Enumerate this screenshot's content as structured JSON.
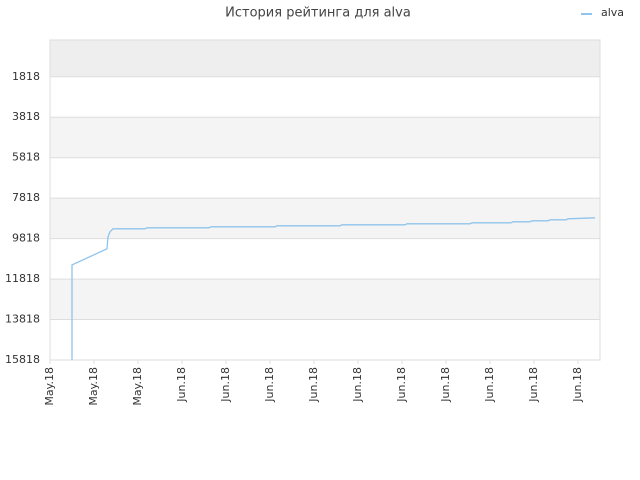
{
  "chart_data": {
    "type": "line",
    "title": "История рейтинга для alva",
    "x": [
      0.5,
      0.5,
      0.5,
      0.5,
      1.295,
      1.318,
      1.364,
      1.432,
      2.159,
      2.205,
      3.614,
      3.659,
      5.114,
      5.159,
      6.591,
      6.636,
      8.068,
      8.114,
      9.545,
      9.591,
      10.477,
      10.523,
      10.909,
      10.955,
      11.318,
      11.364,
      11.727,
      11.773,
      12.386
    ],
    "series": [
      {
        "name": "alva",
        "color": "#90c4ec",
        "values": [
          15818,
          13343,
          13096,
          11115,
          10323,
          9730,
          9482,
          9334,
          9334,
          9284,
          9284,
          9235,
          9235,
          9185,
          9185,
          9136,
          9136,
          9086,
          9086,
          9036,
          9036,
          8987,
          8987,
          8937,
          8937,
          8888,
          8888,
          8838,
          8789
        ]
      }
    ],
    "xlim": [
      0,
      12.5
    ],
    "xticks": [
      {
        "value": 0,
        "label": "May.18"
      },
      {
        "value": 1,
        "label": "May.18"
      },
      {
        "value": 2,
        "label": "May.18"
      },
      {
        "value": 3,
        "label": "Jun.18"
      },
      {
        "value": 4,
        "label": "Jun.18"
      },
      {
        "value": 5,
        "label": "Jun.18"
      },
      {
        "value": 6,
        "label": "Jun.18"
      },
      {
        "value": 7,
        "label": "Jun.18"
      },
      {
        "value": 8,
        "label": "Jun.18"
      },
      {
        "value": 9,
        "label": "Jun.18"
      },
      {
        "value": 10,
        "label": "Jun.18"
      },
      {
        "value": 11,
        "label": "Jun.18"
      },
      {
        "value": 12,
        "label": "Jun.18"
      }
    ],
    "ylim": [
      15818,
      0
    ],
    "yticks": [
      1818,
      3818,
      5818,
      7818,
      9818,
      11818,
      13818,
      15818
    ],
    "grid": true,
    "legend": "top-right"
  }
}
